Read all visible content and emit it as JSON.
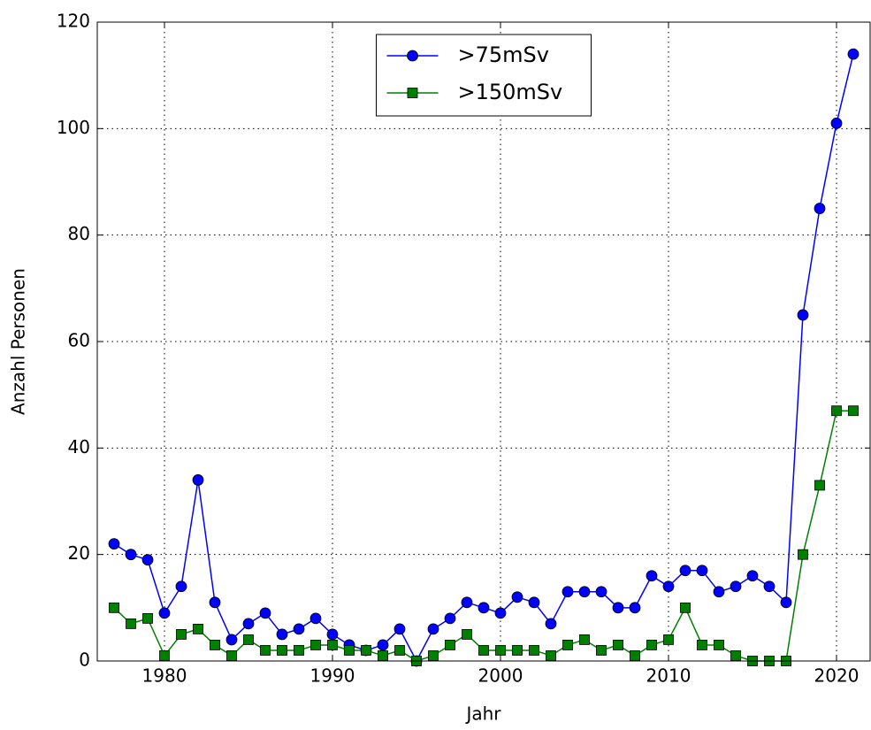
{
  "chart_data": {
    "type": "line",
    "xlabel": "Jahr",
    "ylabel": "Anzahl Personen",
    "x": [
      1977,
      1978,
      1979,
      1980,
      1981,
      1982,
      1983,
      1984,
      1985,
      1986,
      1987,
      1988,
      1989,
      1990,
      1991,
      1992,
      1993,
      1994,
      1995,
      1996,
      1997,
      1998,
      1999,
      2000,
      2001,
      2002,
      2003,
      2004,
      2005,
      2006,
      2007,
      2008,
      2009,
      2010,
      2011,
      2012,
      2013,
      2014,
      2015,
      2016,
      2017,
      2018,
      2019,
      2020,
      2021
    ],
    "series": [
      {
        "name": ">75mSv",
        "color": "#0000ff",
        "marker": "circle",
        "values": [
          22,
          20,
          19,
          9,
          14,
          34,
          11,
          4,
          7,
          9,
          5,
          6,
          8,
          5,
          3,
          2,
          3,
          6,
          0,
          6,
          8,
          11,
          10,
          9,
          12,
          11,
          7,
          13,
          13,
          13,
          10,
          10,
          16,
          14,
          17,
          17,
          13,
          14,
          16,
          14,
          11,
          65,
          85,
          101,
          114
        ]
      },
      {
        "name": ">150mSv",
        "color": "#008000",
        "marker": "square",
        "values": [
          10,
          7,
          8,
          1,
          5,
          6,
          3,
          1,
          4,
          2,
          2,
          2,
          3,
          3,
          2,
          2,
          1,
          2,
          0,
          1,
          3,
          5,
          2,
          2,
          2,
          2,
          1,
          3,
          4,
          2,
          3,
          1,
          3,
          4,
          10,
          3,
          3,
          1,
          0,
          0,
          0,
          20,
          33,
          47,
          47
        ]
      }
    ],
    "xlim": [
      1976,
      2022
    ],
    "xticks": [
      1980,
      1990,
      2000,
      2010,
      2020
    ],
    "ylim": [
      0,
      120
    ],
    "yticks": [
      0,
      20,
      40,
      60,
      80,
      100,
      120
    ],
    "grid": true,
    "legend": "upper center"
  }
}
